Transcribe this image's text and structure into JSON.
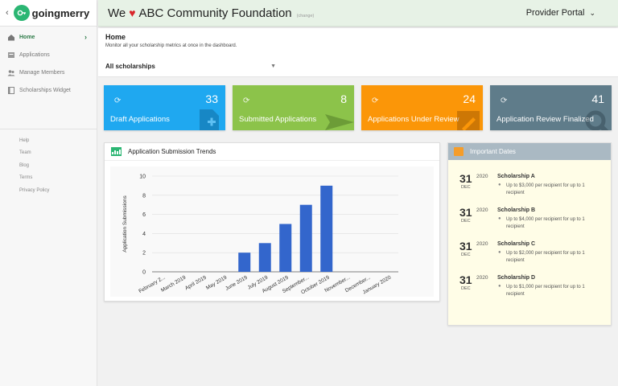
{
  "brand": {
    "back": "‹",
    "name": "goingmerry"
  },
  "sidebar": {
    "items": [
      {
        "label": "Home",
        "icon": "home-icon",
        "active": true
      },
      {
        "label": "Applications",
        "icon": "applications-icon"
      },
      {
        "label": "Manage Members",
        "icon": "members-icon"
      },
      {
        "label": "Scholarships Widget",
        "icon": "widget-icon"
      }
    ],
    "footer_links": [
      "Help",
      "Team",
      "Blog",
      "Terms",
      "Privacy Policy"
    ]
  },
  "header": {
    "title_prefix": "We",
    "heart": "♥",
    "org": "ABC Community Foundation",
    "change": "(change)",
    "portal": "Provider Portal",
    "portal_caret": "⌄"
  },
  "page": {
    "title": "Home",
    "subtitle": "Monitor all your scholarship metrics at once in the dashboard.",
    "filter_value": "All scholarships"
  },
  "cards": [
    {
      "label": "Draft Applications",
      "value": "33",
      "color": "#1fa8f0"
    },
    {
      "label": "Submitted Applications",
      "value": "8",
      "color": "#8cc34a"
    },
    {
      "label": "Applications Under Review",
      "value": "24",
      "color": "#fb9608"
    },
    {
      "label": "Application Review Finalized",
      "value": "41",
      "color": "#5f7c8a"
    }
  ],
  "chart_panel": {
    "title": "Application Submission Trends"
  },
  "chart_data": {
    "type": "bar",
    "categories": [
      "February 2...",
      "March 2019",
      "April 2019",
      "May 2019",
      "June 2019",
      "July 2019",
      "August 2019",
      "September...",
      "October 2019",
      "November...",
      "December...",
      "January 2020"
    ],
    "values": [
      0,
      0,
      0,
      0,
      2,
      3,
      5,
      7,
      9,
      0,
      0,
      0
    ],
    "ylabel": "Application Submissions",
    "ylim": [
      0,
      10
    ],
    "yticks": [
      0,
      2,
      4,
      6,
      8,
      10
    ],
    "bar_color": "#3366cc",
    "grid": true
  },
  "dates_panel": {
    "title": "Important Dates",
    "items": [
      {
        "day": "31",
        "month": "DEC",
        "year": "2020",
        "name": "Scholarship A",
        "desc": "Up to $3,000 per recipient for up to 1 recipient"
      },
      {
        "day": "31",
        "month": "DEC",
        "year": "2020",
        "name": "Scholarship B",
        "desc": "Up to $4,000 per recipient for up to 1 recipient"
      },
      {
        "day": "31",
        "month": "DEC",
        "year": "2020",
        "name": "Scholarship C",
        "desc": "Up to $2,000 per recipient for up to 1 recipient"
      },
      {
        "day": "31",
        "month": "DEC",
        "year": "2020",
        "name": "Scholarship D",
        "desc": "Up to $1,000 per recipient for up to 1 recipient"
      }
    ]
  }
}
